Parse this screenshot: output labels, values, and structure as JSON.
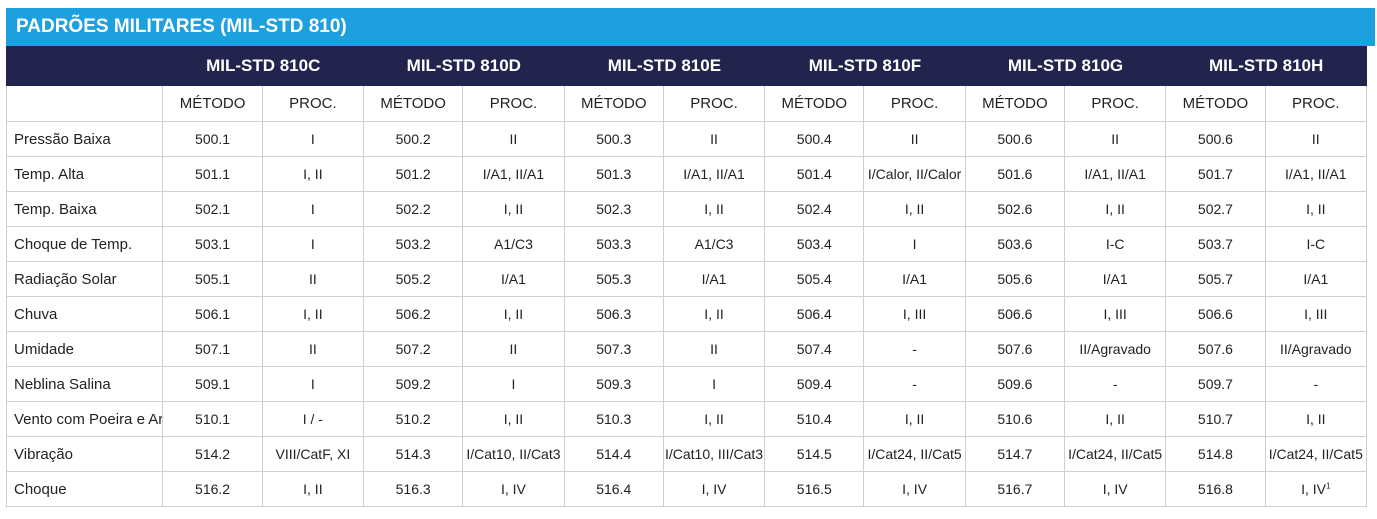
{
  "title": "PADRÕES MILITARES (MIL-STD 810)",
  "standards": [
    "MIL-STD 810C",
    "MIL-STD 810D",
    "MIL-STD 810E",
    "MIL-STD 810F",
    "MIL-STD 810G",
    "MIL-STD 810H"
  ],
  "sub_headers": {
    "method": "MÉTODO",
    "proc": "PROC."
  },
  "rows": [
    {
      "label": "Pressão Baixa",
      "cells": [
        "500.1",
        "I",
        "500.2",
        "II",
        "500.3",
        "II",
        "500.4",
        "II",
        "500.6",
        "II",
        "500.6",
        "II"
      ]
    },
    {
      "label": "Temp. Alta",
      "cells": [
        "501.1",
        "I, II",
        "501.2",
        "I/A1, II/A1",
        "501.3",
        "I/A1, II/A1",
        "501.4",
        "I/Calor, II/Calor",
        "501.6",
        "I/A1, II/A1",
        "501.7",
        "I/A1, II/A1"
      ]
    },
    {
      "label": "Temp. Baixa",
      "cells": [
        "502.1",
        "I",
        "502.2",
        "I, II",
        "502.3",
        "I, II",
        "502.4",
        "I, II",
        "502.6",
        "I, II",
        "502.7",
        "I, II"
      ]
    },
    {
      "label": "Choque de Temp.",
      "cells": [
        "503.1",
        "I",
        "503.2",
        "A1/C3",
        "503.3",
        "A1/C3",
        "503.4",
        "I",
        "503.6",
        "I-C",
        "503.7",
        "I-C"
      ]
    },
    {
      "label": "Radiação Solar",
      "cells": [
        "505.1",
        "II",
        "505.2",
        "I/A1",
        "505.3",
        "I/A1",
        "505.4",
        "I/A1",
        "505.6",
        "I/A1",
        "505.7",
        "I/A1"
      ]
    },
    {
      "label": "Chuva",
      "cells": [
        "506.1",
        "I, II",
        "506.2",
        "I, II",
        "506.3",
        "I, II",
        "506.4",
        "I, III",
        "506.6",
        "I, III",
        "506.6",
        "I, III"
      ]
    },
    {
      "label": "Umidade",
      "cells": [
        "507.1",
        "II",
        "507.2",
        "II",
        "507.3",
        "II",
        "507.4",
        "-",
        "507.6",
        "II/Agravado",
        "507.6",
        "II/Agravado"
      ]
    },
    {
      "label": "Neblina Salina",
      "cells": [
        "509.1",
        "I",
        "509.2",
        "I",
        "509.3",
        "I",
        "509.4",
        "-",
        "509.6",
        "-",
        "509.7",
        "-"
      ]
    },
    {
      "label": "Vento com Poeira e Areia",
      "cells": [
        "510.1",
        "I / -",
        "510.2",
        "I, II",
        "510.3",
        "I, II",
        "510.4",
        "I, II",
        "510.6",
        "I, II",
        "510.7",
        "I, II"
      ]
    },
    {
      "label": "Vibração",
      "cells": [
        "514.2",
        "VIII/CatF, XI",
        "514.3",
        "I/Cat10, II/Cat3",
        "514.4",
        "I/Cat10, III/Cat3",
        "514.5",
        "I/Cat24, II/Cat5",
        "514.7",
        "I/Cat24, II/Cat5",
        "514.8",
        "I/Cat24, II/Cat5"
      ]
    },
    {
      "label": "Choque",
      "cells": [
        "516.2",
        "I, II",
        "516.3",
        "I, IV",
        "516.4",
        "I, IV",
        "516.5",
        "I, IV",
        "516.7",
        "I, IV",
        "516.8",
        "I, IV"
      ]
    }
  ],
  "footnote_marker": "1"
}
